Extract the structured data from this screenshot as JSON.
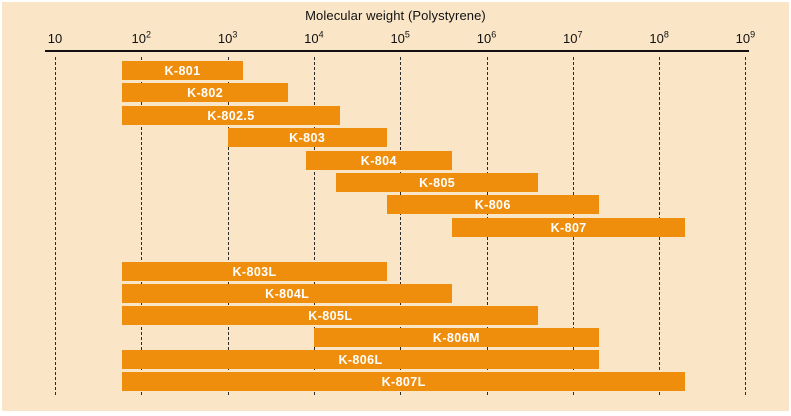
{
  "title": "Molecular weight (Polystyrene)",
  "colors": {
    "background": "#fae5c6",
    "bar": "#ef8e0d",
    "bar_label": "#ffffff",
    "axis": "#111111",
    "gridline": "#2b2b2b"
  },
  "chart_data": {
    "type": "bar",
    "subtype": "horizontal-log-range-bars",
    "title": "Molecular weight (Polystyrene)",
    "legend": "none",
    "grid": "dashed vertical line per decade",
    "x_axis": {
      "scale": "log10",
      "min": 10,
      "max": 1000000000,
      "ticks": [
        {
          "mantissa": "10",
          "exp": ""
        },
        {
          "mantissa": "10",
          "exp": "2"
        },
        {
          "mantissa": "10",
          "exp": "3"
        },
        {
          "mantissa": "10",
          "exp": "4"
        },
        {
          "mantissa": "10",
          "exp": "5"
        },
        {
          "mantissa": "10",
          "exp": "6"
        },
        {
          "mantissa": "10",
          "exp": "7"
        },
        {
          "mantissa": "10",
          "exp": "8"
        },
        {
          "mantissa": "10",
          "exp": "9"
        }
      ]
    },
    "bars": [
      {
        "label": "K-801",
        "min": 60,
        "max": 1500,
        "group": 1
      },
      {
        "label": "K-802",
        "min": 60,
        "max": 5000,
        "group": 1
      },
      {
        "label": "K-802.5",
        "min": 60,
        "max": 20000,
        "group": 1
      },
      {
        "label": "K-803",
        "min": 1000,
        "max": 70000,
        "group": 1
      },
      {
        "label": "K-804",
        "min": 8000,
        "max": 400000,
        "group": 1
      },
      {
        "label": "K-805",
        "min": 18000,
        "max": 4000000,
        "group": 1
      },
      {
        "label": "K-806",
        "min": 70000,
        "max": 20000000,
        "group": 1
      },
      {
        "label": "K-807",
        "min": 400000,
        "max": 200000000,
        "group": 1
      },
      {
        "label": "K-803L",
        "min": 60,
        "max": 70000,
        "group": 2
      },
      {
        "label": "K-804L",
        "min": 60,
        "max": 400000,
        "group": 2
      },
      {
        "label": "K-805L",
        "min": 60,
        "max": 4000000,
        "group": 2
      },
      {
        "label": "K-806M",
        "min": 10000,
        "max": 20000000,
        "group": 2
      },
      {
        "label": "K-806L",
        "min": 60,
        "max": 20000000,
        "group": 2
      },
      {
        "label": "K-807L",
        "min": 60,
        "max": 200000000,
        "group": 2
      }
    ]
  }
}
